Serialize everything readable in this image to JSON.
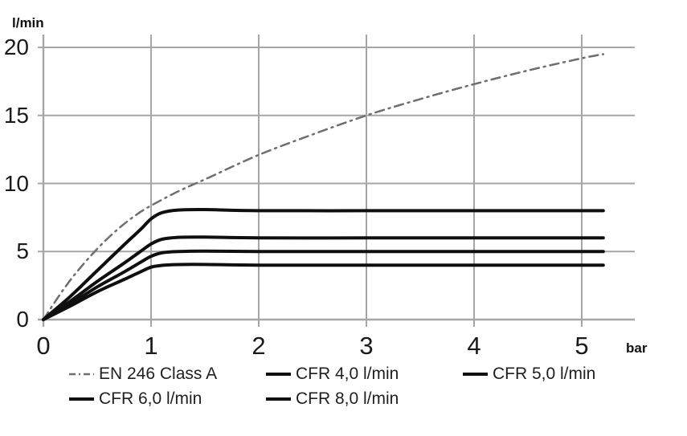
{
  "chart_data": {
    "type": "line",
    "title": "",
    "xlabel_unit": "bar",
    "ylabel_unit": "l/min",
    "x_ticks": [
      0,
      1,
      2,
      3,
      4,
      5
    ],
    "y_ticks": [
      0,
      5,
      10,
      15,
      20
    ],
    "xlim": [
      0,
      5.5
    ],
    "ylim": [
      0,
      20
    ],
    "grid": true,
    "legend_position": "bottom",
    "grid_color": "#a6a6a6",
    "series": [
      {
        "name": "EN 246 Class A",
        "color": "#6e6e6e",
        "style": "dashdot",
        "width": 2.5,
        "x": [
          0,
          0.15,
          0.3,
          0.5,
          0.7,
          0.9,
          1.1,
          1.3,
          1.5,
          2.0,
          2.5,
          3.0,
          3.5,
          4.0,
          4.5,
          5.0,
          5.2
        ],
        "y": [
          0,
          1.8,
          3.4,
          5.2,
          6.7,
          7.9,
          8.8,
          9.6,
          10.3,
          12.1,
          13.6,
          15.0,
          16.2,
          17.3,
          18.3,
          19.2,
          19.5
        ]
      },
      {
        "name": "CFR 4,0 l/min",
        "color": "#0f0f0f",
        "style": "solid",
        "width": 4,
        "x": [
          0,
          0.25,
          0.5,
          0.75,
          0.9,
          1.0,
          1.1,
          1.25,
          1.5,
          2.0,
          3.0,
          4.0,
          5.2
        ],
        "y": [
          0,
          1.0,
          2.05,
          2.95,
          3.5,
          3.85,
          3.98,
          4.04,
          4.05,
          4.0,
          4.0,
          4.0,
          4.0
        ]
      },
      {
        "name": "CFR 5,0 l/min",
        "color": "#0f0f0f",
        "style": "solid",
        "width": 4,
        "x": [
          0,
          0.25,
          0.5,
          0.75,
          0.9,
          1.0,
          1.1,
          1.25,
          1.5,
          2.0,
          3.0,
          4.0,
          5.2
        ],
        "y": [
          0,
          1.15,
          2.4,
          3.5,
          4.2,
          4.65,
          4.9,
          5.0,
          5.03,
          5.0,
          5.0,
          5.0,
          5.0
        ]
      },
      {
        "name": "CFR 6,0 l/min",
        "color": "#0f0f0f",
        "style": "solid",
        "width": 4,
        "x": [
          0,
          0.25,
          0.5,
          0.75,
          0.9,
          1.0,
          1.1,
          1.25,
          1.5,
          2.0,
          3.0,
          4.0,
          5.2
        ],
        "y": [
          0,
          1.35,
          2.8,
          4.15,
          5.0,
          5.55,
          5.9,
          6.04,
          6.06,
          6.0,
          6.0,
          6.0,
          6.0
        ]
      },
      {
        "name": "CFR 8,0 l/min",
        "color": "#0f0f0f",
        "style": "solid",
        "width": 4,
        "x": [
          0,
          0.25,
          0.5,
          0.75,
          0.9,
          1.0,
          1.1,
          1.25,
          1.5,
          2.0,
          3.0,
          4.0,
          5.2
        ],
        "y": [
          0,
          1.7,
          3.6,
          5.5,
          6.6,
          7.4,
          7.85,
          8.05,
          8.08,
          8.0,
          8.0,
          8.0,
          8.0
        ]
      }
    ]
  }
}
